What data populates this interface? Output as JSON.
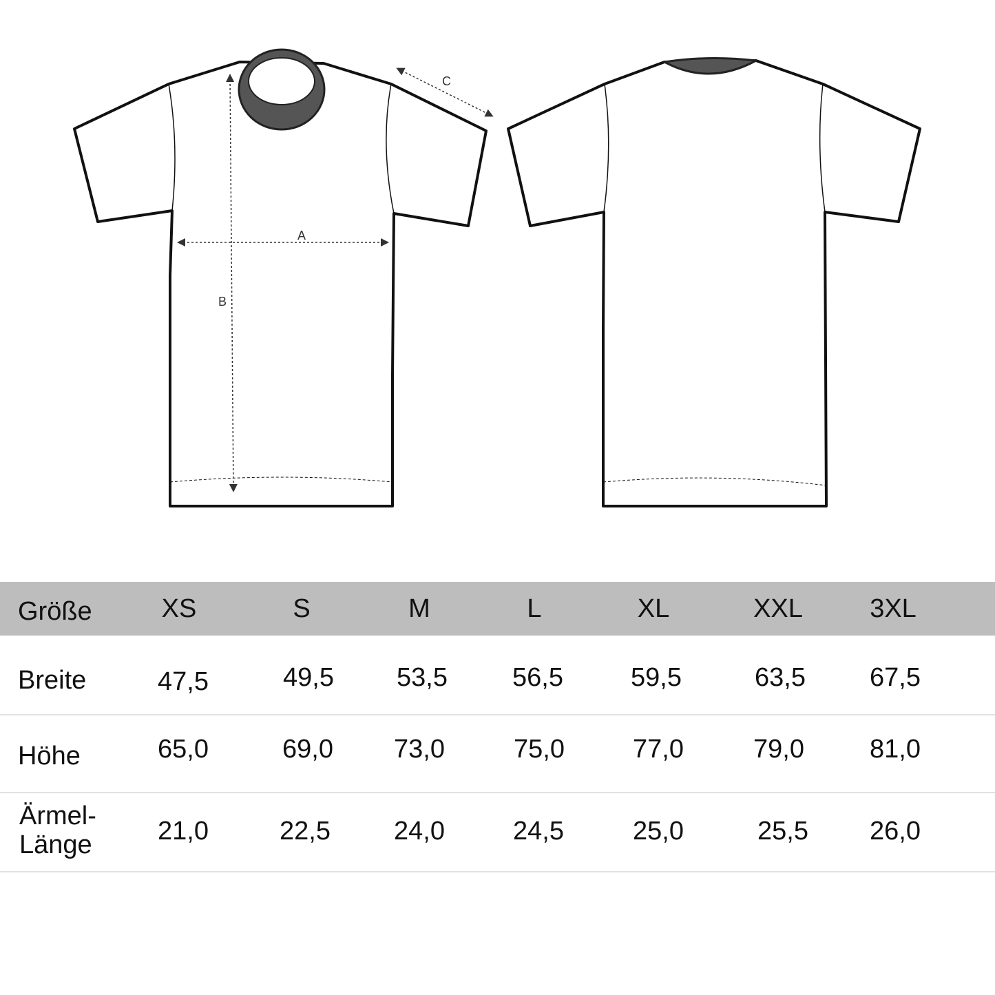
{
  "diagram": {
    "measure_labels": [
      "A",
      "B",
      "C"
    ]
  },
  "table": {
    "header_label": "Größe",
    "sizes": [
      "XS",
      "S",
      "M",
      "L",
      "XL",
      "XXL",
      "3XL"
    ],
    "rows": [
      {
        "label": "Breite",
        "values": [
          "47,5",
          "49,5",
          "53,5",
          "56,5",
          "59,5",
          "63,5",
          "67,5"
        ]
      },
      {
        "label": "Höhe",
        "values": [
          "65,0",
          "69,0",
          "73,0",
          "75,0",
          "77,0",
          "79,0",
          "81,0"
        ]
      },
      {
        "label": "Ärmel-\nLänge",
        "values": [
          "21,0",
          "22,5",
          "24,0",
          "24,5",
          "25,0",
          "25,5",
          "26,0"
        ]
      }
    ],
    "header_color": "#bdbdbd"
  }
}
